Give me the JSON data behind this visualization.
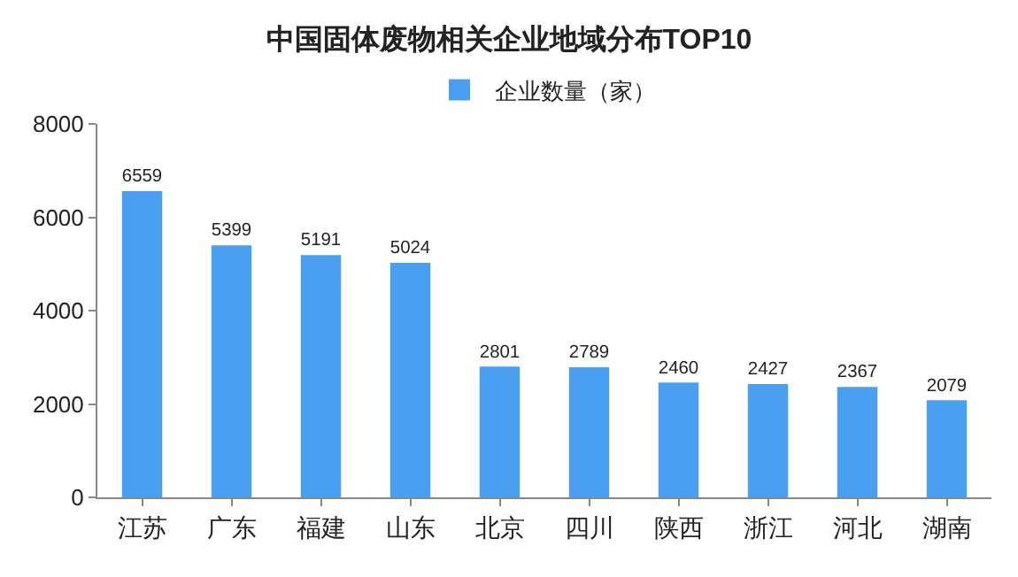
{
  "chart_data": {
    "type": "bar",
    "title": "中国固体废物相关企业地域分布TOP10",
    "categories": [
      "江苏",
      "广东",
      "福建",
      "山东",
      "北京",
      "四川",
      "陕西",
      "浙江",
      "河北",
      "湖南"
    ],
    "series": [
      {
        "name": "企业数量（家）",
        "color": "#4a9ff0",
        "values": [
          6559,
          5399,
          5191,
          5024,
          2801,
          2789,
          2460,
          2427,
          2367,
          2079
        ]
      }
    ],
    "ylim": [
      0,
      8000
    ],
    "yticks": [
      0,
      2000,
      4000,
      6000,
      8000
    ],
    "grid": false,
    "legend": "top",
    "data_labels": true
  }
}
